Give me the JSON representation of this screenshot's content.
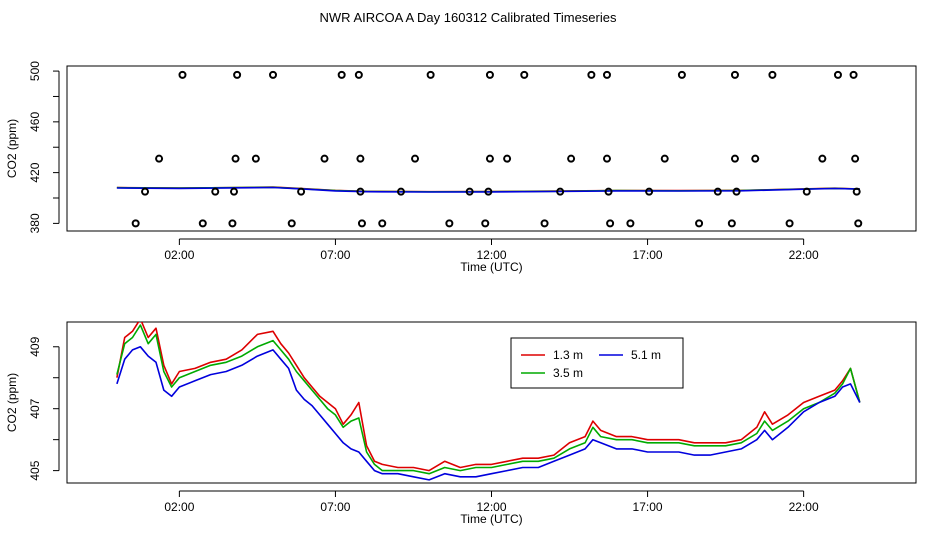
{
  "title": "NWR AIRCOA A  Day 160312  Calibrated Timeseries",
  "chart_data": [
    {
      "type": "scatter",
      "xlabel": "Time (UTC)",
      "ylabel": "CO2 (ppm)",
      "xlim": [
        -1.6,
        25.6
      ],
      "ylim": [
        374,
        504
      ],
      "xticks": [
        2,
        7,
        12,
        17,
        22
      ],
      "xtick_labels": [
        "02:00",
        "07:00",
        "12:00",
        "17:00",
        "22:00"
      ],
      "yticks": [
        380,
        400,
        420,
        440,
        460,
        480,
        500
      ],
      "ytick_labels": [
        "380",
        "",
        "420",
        "",
        "460",
        "",
        "500"
      ],
      "flag_points": [
        {
          "x": 2.1,
          "y": 497
        },
        {
          "x": 3.85,
          "y": 497
        },
        {
          "x": 5.0,
          "y": 497
        },
        {
          "x": 7.2,
          "y": 497
        },
        {
          "x": 7.75,
          "y": 497
        },
        {
          "x": 10.05,
          "y": 497
        },
        {
          "x": 11.95,
          "y": 497
        },
        {
          "x": 13.05,
          "y": 497
        },
        {
          "x": 15.2,
          "y": 497
        },
        {
          "x": 15.7,
          "y": 497
        },
        {
          "x": 18.1,
          "y": 497
        },
        {
          "x": 19.8,
          "y": 497
        },
        {
          "x": 21.0,
          "y": 497
        },
        {
          "x": 23.1,
          "y": 497
        },
        {
          "x": 23.6,
          "y": 497
        },
        {
          "x": 1.35,
          "y": 431
        },
        {
          "x": 3.8,
          "y": 431
        },
        {
          "x": 4.45,
          "y": 431
        },
        {
          "x": 6.65,
          "y": 431
        },
        {
          "x": 7.8,
          "y": 431
        },
        {
          "x": 9.55,
          "y": 431
        },
        {
          "x": 11.95,
          "y": 431
        },
        {
          "x": 12.5,
          "y": 431
        },
        {
          "x": 14.55,
          "y": 431
        },
        {
          "x": 15.7,
          "y": 431
        },
        {
          "x": 17.55,
          "y": 431
        },
        {
          "x": 19.8,
          "y": 431
        },
        {
          "x": 20.45,
          "y": 431
        },
        {
          "x": 22.6,
          "y": 431
        },
        {
          "x": 23.65,
          "y": 431
        },
        {
          "x": 0.9,
          "y": 405
        },
        {
          "x": 3.15,
          "y": 405
        },
        {
          "x": 3.75,
          "y": 405
        },
        {
          "x": 5.9,
          "y": 405
        },
        {
          "x": 7.8,
          "y": 405
        },
        {
          "x": 9.1,
          "y": 405
        },
        {
          "x": 11.3,
          "y": 405
        },
        {
          "x": 11.9,
          "y": 405
        },
        {
          "x": 14.2,
          "y": 405
        },
        {
          "x": 15.75,
          "y": 405
        },
        {
          "x": 17.05,
          "y": 405
        },
        {
          "x": 19.25,
          "y": 405
        },
        {
          "x": 19.85,
          "y": 405
        },
        {
          "x": 22.1,
          "y": 405
        },
        {
          "x": 23.7,
          "y": 405
        },
        {
          "x": 0.6,
          "y": 380
        },
        {
          "x": 2.75,
          "y": 380
        },
        {
          "x": 3.7,
          "y": 380
        },
        {
          "x": 5.6,
          "y": 380
        },
        {
          "x": 7.85,
          "y": 380
        },
        {
          "x": 8.5,
          "y": 380
        },
        {
          "x": 10.65,
          "y": 380
        },
        {
          "x": 11.8,
          "y": 380
        },
        {
          "x": 13.7,
          "y": 380
        },
        {
          "x": 15.8,
          "y": 380
        },
        {
          "x": 16.45,
          "y": 380
        },
        {
          "x": 18.65,
          "y": 380
        },
        {
          "x": 19.7,
          "y": 380
        },
        {
          "x": 21.55,
          "y": 380
        },
        {
          "x": 23.75,
          "y": 380
        }
      ],
      "series": [
        {
          "color": "#dd0000",
          "x": [
            0,
            2,
            4,
            5,
            6,
            7,
            8,
            10,
            12,
            14,
            16,
            18,
            20,
            22,
            23,
            23.8
          ],
          "y": [
            408.2,
            407.9,
            408.3,
            408.6,
            407.3,
            406.0,
            405.3,
            405.0,
            405.1,
            405.4,
            405.9,
            405.8,
            406.0,
            407.2,
            407.7,
            407.0
          ]
        },
        {
          "color": "#00aa00",
          "x": [
            0,
            2,
            4,
            5,
            6,
            7,
            8,
            10,
            12,
            14,
            16,
            18,
            20,
            22,
            23,
            23.8
          ],
          "y": [
            408.1,
            407.8,
            408.2,
            408.4,
            407.2,
            405.9,
            405.2,
            404.9,
            405.0,
            405.3,
            405.8,
            405.7,
            405.9,
            407.1,
            407.6,
            407.0
          ]
        },
        {
          "color": "#0000dd",
          "x": [
            0,
            2,
            4,
            5,
            6,
            7,
            8,
            10,
            12,
            14,
            16,
            18,
            20,
            22,
            23,
            23.8
          ],
          "y": [
            407.9,
            407.6,
            408.0,
            408.3,
            407.0,
            405.6,
            405.0,
            404.7,
            404.8,
            405.1,
            405.6,
            405.5,
            405.7,
            406.9,
            407.5,
            407.0
          ]
        }
      ]
    },
    {
      "type": "line",
      "xlabel": "Time (UTC)",
      "ylabel": "CO2 (ppm)",
      "xlim": [
        -1.6,
        25.6
      ],
      "ylim": [
        404.6,
        409.8
      ],
      "xticks": [
        2,
        7,
        12,
        17,
        22
      ],
      "xtick_labels": [
        "02:00",
        "07:00",
        "12:00",
        "17:00",
        "22:00"
      ],
      "yticks": [
        405,
        406,
        407,
        408,
        409
      ],
      "ytick_labels": [
        "405",
        "",
        "407",
        "",
        "409"
      ],
      "legend_position": "top-right",
      "x": [
        0,
        0.25,
        0.5,
        0.75,
        1.0,
        1.25,
        1.5,
        1.75,
        2.0,
        2.5,
        3.0,
        3.5,
        4.0,
        4.5,
        5.0,
        5.25,
        5.5,
        5.75,
        6.0,
        6.25,
        6.5,
        6.75,
        7.0,
        7.25,
        7.5,
        7.75,
        8.0,
        8.25,
        8.5,
        9.0,
        9.5,
        10.0,
        10.5,
        11.0,
        11.5,
        12.0,
        12.5,
        13.0,
        13.5,
        14.0,
        14.5,
        15.0,
        15.25,
        15.5,
        16.0,
        16.5,
        17.0,
        17.5,
        18.0,
        18.5,
        19.0,
        19.5,
        20.0,
        20.5,
        20.75,
        21.0,
        21.5,
        22.0,
        22.5,
        23.0,
        23.25,
        23.5,
        23.8
      ],
      "series": [
        {
          "name": "1.3 m",
          "color": "#dd0000",
          "values": [
            408.0,
            409.3,
            409.5,
            409.9,
            409.3,
            409.6,
            408.4,
            407.8,
            408.2,
            408.3,
            408.5,
            408.6,
            408.9,
            409.4,
            409.5,
            409.1,
            408.8,
            408.4,
            408.0,
            407.7,
            407.4,
            407.2,
            407.0,
            406.5,
            406.8,
            407.2,
            405.8,
            405.3,
            405.2,
            405.1,
            405.1,
            405.0,
            405.3,
            405.1,
            405.2,
            405.2,
            405.3,
            405.4,
            405.4,
            405.5,
            405.9,
            406.1,
            406.6,
            406.3,
            406.1,
            406.1,
            406.0,
            406.0,
            406.0,
            405.9,
            405.9,
            405.9,
            406.0,
            406.4,
            406.9,
            406.5,
            406.8,
            407.2,
            407.4,
            407.6,
            407.9,
            408.3,
            407.2
          ]
        },
        {
          "name": "3.5 m",
          "color": "#00aa00",
          "values": [
            408.1,
            409.1,
            409.3,
            409.7,
            409.1,
            409.4,
            408.2,
            407.7,
            408.0,
            408.2,
            408.4,
            408.5,
            408.7,
            409.0,
            409.2,
            408.9,
            408.6,
            408.2,
            407.9,
            407.6,
            407.3,
            407.0,
            406.8,
            406.4,
            406.6,
            406.7,
            405.6,
            405.2,
            405.0,
            405.0,
            405.0,
            404.9,
            405.1,
            405.0,
            405.1,
            405.1,
            405.2,
            405.3,
            405.3,
            405.4,
            405.7,
            405.9,
            406.4,
            406.1,
            406.0,
            406.0,
            405.9,
            405.9,
            405.9,
            405.8,
            405.8,
            405.8,
            405.9,
            406.2,
            406.6,
            406.3,
            406.6,
            407.0,
            407.2,
            407.5,
            407.8,
            408.3,
            407.2
          ]
        },
        {
          "name": "5.1 m",
          "color": "#0000dd",
          "values": [
            407.8,
            408.6,
            408.9,
            409.0,
            408.7,
            408.5,
            407.6,
            407.4,
            407.7,
            407.9,
            408.1,
            408.2,
            408.4,
            408.7,
            408.9,
            408.6,
            408.3,
            407.6,
            407.3,
            407.1,
            406.8,
            406.5,
            406.2,
            405.9,
            405.7,
            405.6,
            405.3,
            405.0,
            404.9,
            404.9,
            404.8,
            404.7,
            404.9,
            404.8,
            404.8,
            404.9,
            405.0,
            405.1,
            405.1,
            405.3,
            405.5,
            405.7,
            406.0,
            405.9,
            405.7,
            405.7,
            405.6,
            405.6,
            405.6,
            405.5,
            405.5,
            405.6,
            405.7,
            406.0,
            406.3,
            406.0,
            406.4,
            406.9,
            407.2,
            407.4,
            407.7,
            407.8,
            407.2
          ]
        }
      ]
    }
  ]
}
